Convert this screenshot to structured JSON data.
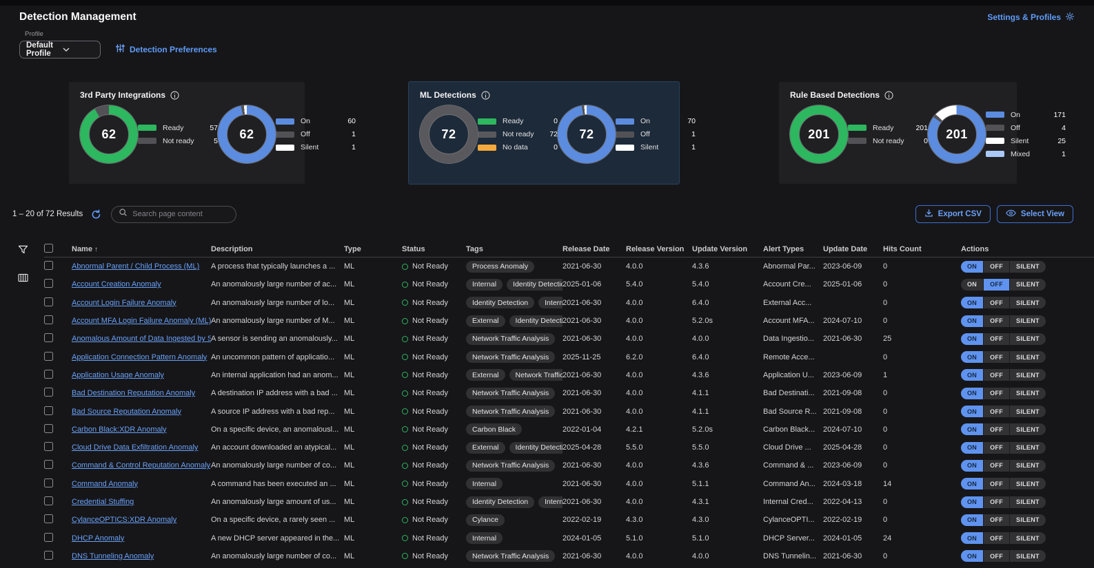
{
  "header": {
    "title": "Detection Management",
    "settings_link": "Settings & Profiles",
    "profile_label": "Profile",
    "profile_value": "Default Profile",
    "preferences_link": "Detection Preferences"
  },
  "cards": [
    {
      "title": "3rd Party Integrations",
      "selected": false,
      "donuts": [
        {
          "total": "62",
          "segments": [
            {
              "label": "Ready",
              "value": 57,
              "color": "#2db75f"
            },
            {
              "label": "Not ready",
              "value": 5,
              "color": "#525256"
            }
          ]
        },
        {
          "total": "62",
          "segments": [
            {
              "label": "On",
              "value": 60,
              "color": "#5b8ce0"
            },
            {
              "label": "Off",
              "value": 1,
              "color": "#525256"
            },
            {
              "label": "Silent",
              "value": 1,
              "color": "#ffffff"
            }
          ]
        }
      ]
    },
    {
      "title": "ML Detections",
      "selected": true,
      "donuts": [
        {
          "total": "72",
          "segments": [
            {
              "label": "Ready",
              "value": 0,
              "color": "#2db75f"
            },
            {
              "label": "Not ready",
              "value": 72,
              "color": "#59595d"
            },
            {
              "label": "No data",
              "value": 0,
              "color": "#f3a93c"
            }
          ]
        },
        {
          "total": "72",
          "segments": [
            {
              "label": "On",
              "value": 70,
              "color": "#5b8ce0"
            },
            {
              "label": "Off",
              "value": 1,
              "color": "#525256"
            },
            {
              "label": "Silent",
              "value": 1,
              "color": "#ffffff"
            }
          ]
        }
      ]
    },
    {
      "title": "Rule Based Detections",
      "selected": false,
      "donuts": [
        {
          "total": "201",
          "segments": [
            {
              "label": "Ready",
              "value": 201,
              "color": "#2db75f"
            },
            {
              "label": "Not ready",
              "value": 0,
              "color": "#525256"
            }
          ]
        },
        {
          "total": "201",
          "segments": [
            {
              "label": "On",
              "value": 171,
              "color": "#5b8ce0"
            },
            {
              "label": "Off",
              "value": 4,
              "color": "#525256"
            },
            {
              "label": "Silent",
              "value": 25,
              "color": "#ffffff"
            },
            {
              "label": "Mixed",
              "value": 1,
              "color": "#abc8f7"
            }
          ]
        }
      ]
    }
  ],
  "toolbar": {
    "results_text": "1 – 20 of 72 Results",
    "search_placeholder": "Search page content",
    "export_label": "Export CSV",
    "select_view_label": "Select View"
  },
  "actions_options": [
    "ON",
    "OFF",
    "SILENT"
  ],
  "table": {
    "columns": [
      "Name",
      "Description",
      "Type",
      "Status",
      "Tags",
      "Release Date",
      "Release Version",
      "Update Version",
      "Alert Types",
      "Update Date",
      "Hits Count",
      "Actions"
    ],
    "rows": [
      {
        "name": "Abnormal Parent / Child Process (ML)",
        "description": "A process that typically launches a ...",
        "type": "ML",
        "status": "Not Ready",
        "tags": [
          "Process Anomaly"
        ],
        "release_date": "2021-06-30",
        "release_version": "4.0.0",
        "update_version": "4.3.6",
        "alert_types": "Abnormal Par...",
        "update_date": "2023-06-09",
        "hits": "0",
        "action": "ON"
      },
      {
        "name": "Account Creation Anomaly",
        "description": "An anomalously large number of ac...",
        "type": "ML",
        "status": "Not Ready",
        "tags": [
          "Internal",
          "Identity Detection"
        ],
        "release_date": "2025-01-06",
        "release_version": "5.4.0",
        "update_version": "5.4.0",
        "alert_types": "Account Cre...",
        "update_date": "2025-01-06",
        "hits": "0",
        "action": "OFF"
      },
      {
        "name": "Account Login Failure Anomaly",
        "description": "An anomalously large number of lo...",
        "type": "ML",
        "status": "Not Ready",
        "tags": [
          "Identity Detection",
          "Internal"
        ],
        "release_date": "2021-06-30",
        "release_version": "4.0.0",
        "update_version": "6.4.0",
        "alert_types": "External Acc...",
        "update_date": "",
        "hits": "0",
        "action": "ON"
      },
      {
        "name": "Account MFA Login Failure Anomaly (ML)",
        "description": "An anomalously large number of M...",
        "type": "ML",
        "status": "Not Ready",
        "tags": [
          "External",
          "Identity Detection"
        ],
        "release_date": "2021-06-30",
        "release_version": "4.0.0",
        "update_version": "5.2.0s",
        "alert_types": "Account MFA...",
        "update_date": "2024-07-10",
        "hits": "0",
        "action": "ON"
      },
      {
        "name": "Anomalous Amount of Data Ingested by S",
        "description": "A sensor is sending an anomalously...",
        "type": "ML",
        "status": "Not Ready",
        "tags": [
          "Network Traffic Analysis"
        ],
        "release_date": "2021-06-30",
        "release_version": "4.0.0",
        "update_version": "4.0.0",
        "alert_types": "Data Ingestio...",
        "update_date": "2021-06-30",
        "hits": "25",
        "action": "ON"
      },
      {
        "name": "Application Connection Pattern Anomaly",
        "description": "An uncommon pattern of applicatio...",
        "type": "ML",
        "status": "Not Ready",
        "tags": [
          "Network Traffic Analysis"
        ],
        "release_date": "2025-11-25",
        "release_version": "6.2.0",
        "update_version": "6.4.0",
        "alert_types": "Remote Acce...",
        "update_date": "",
        "hits": "0",
        "action": "ON"
      },
      {
        "name": "Application Usage Anomaly",
        "description": "An internal application had an anom...",
        "type": "ML",
        "status": "Not Ready",
        "tags": [
          "External",
          "Network Traffic Analysis"
        ],
        "release_date": "2021-06-30",
        "release_version": "4.0.0",
        "update_version": "4.3.6",
        "alert_types": "Application U...",
        "update_date": "2023-06-09",
        "hits": "1",
        "action": "ON"
      },
      {
        "name": "Bad Destination Reputation Anomaly",
        "description": "A destination IP address with a bad ...",
        "type": "ML",
        "status": "Not Ready",
        "tags": [
          "Network Traffic Analysis"
        ],
        "release_date": "2021-06-30",
        "release_version": "4.0.0",
        "update_version": "4.1.1",
        "alert_types": "Bad Destinati...",
        "update_date": "2021-09-08",
        "hits": "0",
        "action": "ON"
      },
      {
        "name": "Bad Source Reputation Anomaly",
        "description": "A source IP address with a bad rep...",
        "type": "ML",
        "status": "Not Ready",
        "tags": [
          "Network Traffic Analysis"
        ],
        "release_date": "2021-06-30",
        "release_version": "4.0.0",
        "update_version": "4.1.1",
        "alert_types": "Bad Source R...",
        "update_date": "2021-09-08",
        "hits": "0",
        "action": "ON"
      },
      {
        "name": "Carbon Black:XDR Anomaly",
        "description": "On a specific device, an anomalousl...",
        "type": "ML",
        "status": "Not Ready",
        "tags": [
          "Carbon Black"
        ],
        "release_date": "2022-01-04",
        "release_version": "4.2.1",
        "update_version": "5.2.0s",
        "alert_types": "Carbon Black...",
        "update_date": "2024-07-10",
        "hits": "0",
        "action": "ON"
      },
      {
        "name": "Cloud Drive Data Exfiltration Anomaly",
        "description": "An account downloaded an atypical...",
        "type": "ML",
        "status": "Not Ready",
        "tags": [
          "External",
          "Identity Detection"
        ],
        "release_date": "2025-04-28",
        "release_version": "5.5.0",
        "update_version": "5.5.0",
        "alert_types": "Cloud Drive ...",
        "update_date": "2025-04-28",
        "hits": "0",
        "action": "ON"
      },
      {
        "name": "Command & Control Reputation Anomaly",
        "description": "An anomalously large number of co...",
        "type": "ML",
        "status": "Not Ready",
        "tags": [
          "Network Traffic Analysis"
        ],
        "release_date": "2021-06-30",
        "release_version": "4.0.0",
        "update_version": "4.3.6",
        "alert_types": "Command & ...",
        "update_date": "2023-06-09",
        "hits": "0",
        "action": "ON"
      },
      {
        "name": "Command Anomaly",
        "description": "A command has been executed an ...",
        "type": "ML",
        "status": "Not Ready",
        "tags": [
          "Internal"
        ],
        "release_date": "2021-06-30",
        "release_version": "4.0.0",
        "update_version": "5.1.1",
        "alert_types": "Command An...",
        "update_date": "2024-03-18",
        "hits": "14",
        "action": "ON"
      },
      {
        "name": "Credential Stuffing",
        "description": "An anomalously large amount of us...",
        "type": "ML",
        "status": "Not Ready",
        "tags": [
          "Identity Detection",
          "Internal"
        ],
        "release_date": "2021-06-30",
        "release_version": "4.0.0",
        "update_version": "4.3.1",
        "alert_types": "Internal Cred...",
        "update_date": "2022-04-13",
        "hits": "0",
        "action": "ON"
      },
      {
        "name": "CylanceOPTICS:XDR Anomaly",
        "description": "On a specific device, a rarely seen ...",
        "type": "ML",
        "status": "Not Ready",
        "tags": [
          "Cylance"
        ],
        "release_date": "2022-02-19",
        "release_version": "4.3.0",
        "update_version": "4.3.0",
        "alert_types": "CylanceOPTI...",
        "update_date": "2022-02-19",
        "hits": "0",
        "action": "ON"
      },
      {
        "name": "DHCP Anomaly",
        "description": "A new DHCP server appeared in the...",
        "type": "ML",
        "status": "Not Ready",
        "tags": [
          "Internal"
        ],
        "release_date": "2024-01-05",
        "release_version": "5.1.0",
        "update_version": "5.1.0",
        "alert_types": "DHCP Server...",
        "update_date": "2024-01-05",
        "hits": "24",
        "action": "ON"
      },
      {
        "name": "DNS Tunneling Anomaly",
        "description": "An anomalously large number of co...",
        "type": "ML",
        "status": "Not Ready",
        "tags": [
          "Network Traffic Analysis"
        ],
        "release_date": "2021-06-30",
        "release_version": "4.0.0",
        "update_version": "4.0.0",
        "alert_types": "DNS Tunnelin...",
        "update_date": "2021-06-30",
        "hits": "0",
        "action": "ON"
      }
    ]
  }
}
